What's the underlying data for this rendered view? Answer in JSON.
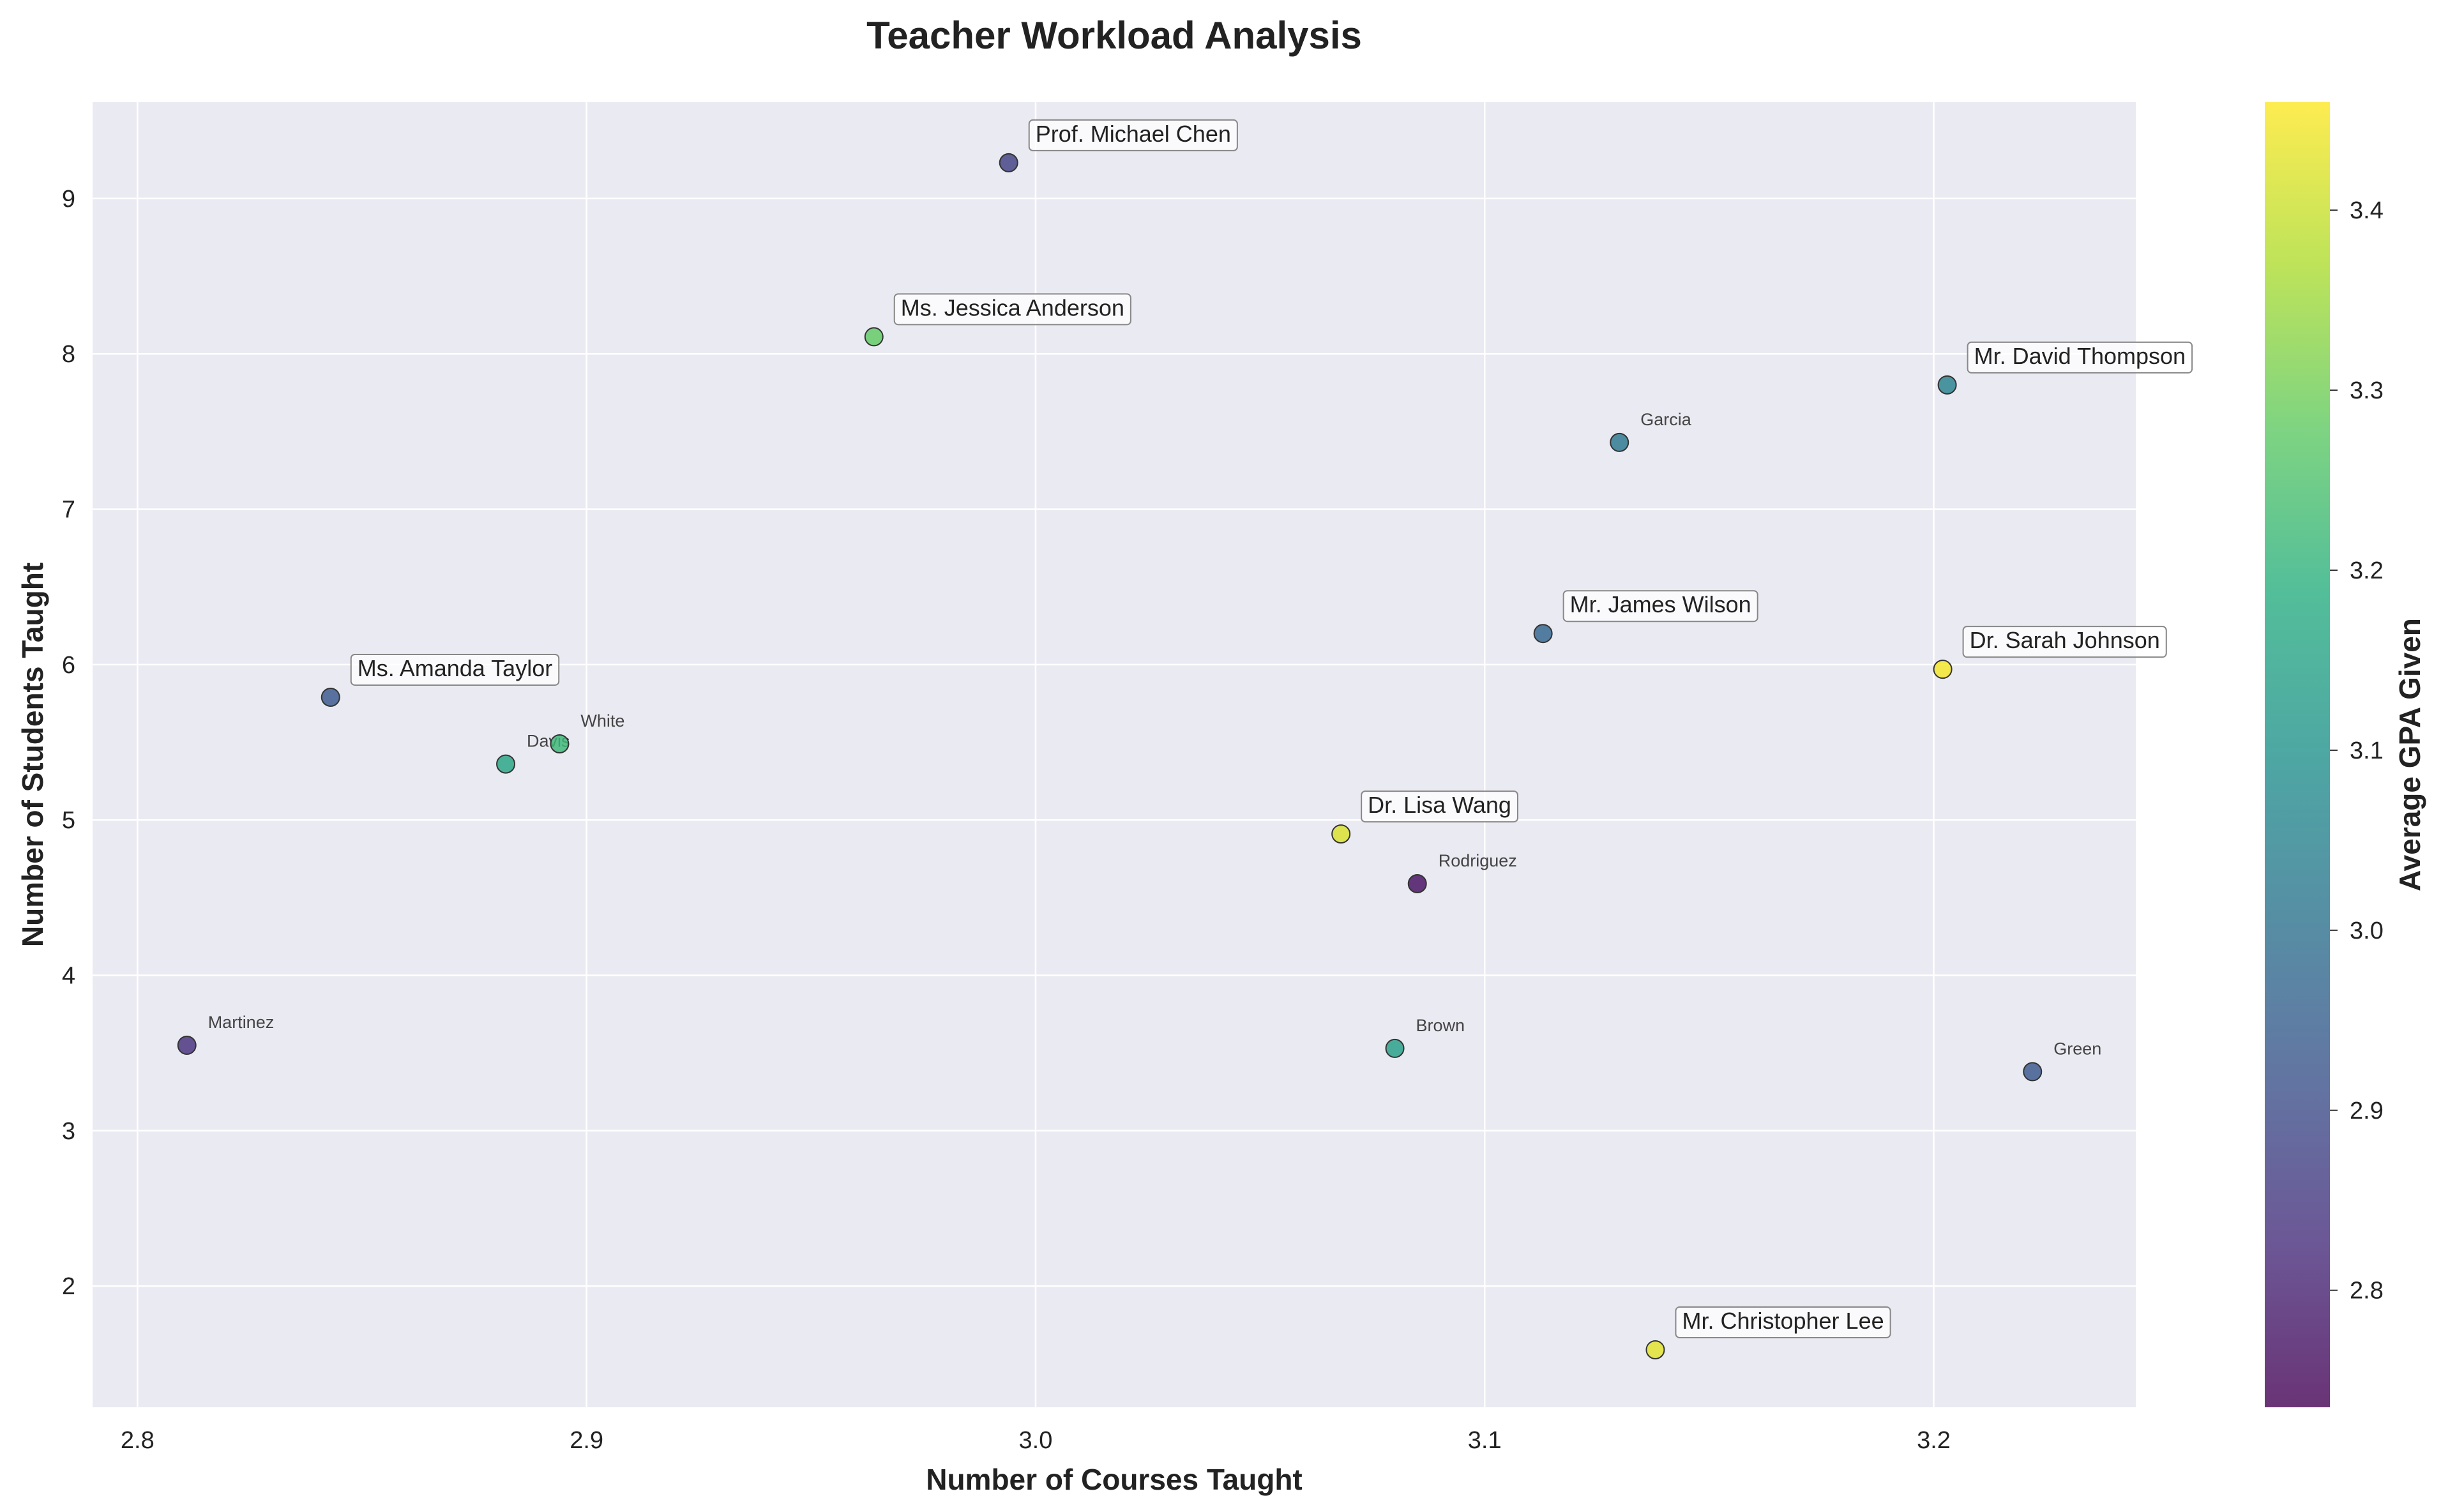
{
  "chart_data": {
    "type": "scatter",
    "title": "Teacher Workload Analysis",
    "xlabel": "Number of Courses Taught",
    "ylabel": "Number of Students Taught",
    "xlim": [
      2.79,
      3.245
    ],
    "ylim": [
      1.22,
      9.62
    ],
    "xticks": [
      2.8,
      2.9,
      3.0,
      3.1,
      3.2
    ],
    "xtick_labels": [
      "2.8",
      "2.9",
      "3.0",
      "3.1",
      "3.2"
    ],
    "yticks": [
      2,
      3,
      4,
      5,
      6,
      7,
      8,
      9
    ],
    "ytick_labels": [
      "2",
      "3",
      "4",
      "5",
      "6",
      "7",
      "8",
      "9"
    ],
    "grid": true,
    "colorbar": {
      "label": "Average GPA Given",
      "colormap": "viridis",
      "range": [
        2.735,
        3.46
      ],
      "ticks": [
        2.8,
        2.9,
        3.0,
        3.1,
        3.2,
        3.3,
        3.4
      ],
      "tick_labels": [
        "2.8",
        "2.9",
        "3.0",
        "3.1",
        "3.2",
        "3.3",
        "3.4"
      ]
    },
    "points": [
      {
        "label": "Prof. Michael Chen",
        "x": 2.994,
        "y": 9.23,
        "gpa": 2.87,
        "boxed": true
      },
      {
        "label": "Ms. Jessica Anderson",
        "x": 2.964,
        "y": 8.11,
        "gpa": 3.28,
        "boxed": true
      },
      {
        "label": "Mr. David Thompson",
        "x": 3.203,
        "y": 7.8,
        "gpa": 3.05,
        "boxed": true
      },
      {
        "label": "Garcia",
        "x": 3.13,
        "y": 7.43,
        "gpa": 3.02,
        "boxed": false
      },
      {
        "label": "Mr. James Wilson",
        "x": 3.113,
        "y": 6.2,
        "gpa": 2.97,
        "boxed": true
      },
      {
        "label": "Dr. Sarah Johnson",
        "x": 3.202,
        "y": 5.97,
        "gpa": 3.45,
        "boxed": true
      },
      {
        "label": "Ms. Amanda Taylor",
        "x": 2.843,
        "y": 5.79,
        "gpa": 2.93,
        "boxed": true
      },
      {
        "label": "White",
        "x": 2.894,
        "y": 5.49,
        "gpa": 3.22,
        "boxed": false
      },
      {
        "label": "Davis",
        "x": 2.882,
        "y": 5.36,
        "gpa": 3.16,
        "boxed": false
      },
      {
        "label": "Dr. Lisa Wang",
        "x": 3.068,
        "y": 4.91,
        "gpa": 3.42,
        "boxed": true
      },
      {
        "label": "Rodriguez",
        "x": 3.085,
        "y": 4.59,
        "gpa": 2.76,
        "boxed": false
      },
      {
        "label": "Martinez",
        "x": 2.811,
        "y": 3.55,
        "gpa": 2.83,
        "boxed": false
      },
      {
        "label": "Brown",
        "x": 3.08,
        "y": 3.53,
        "gpa": 3.14,
        "boxed": false
      },
      {
        "label": "Green",
        "x": 3.222,
        "y": 3.38,
        "gpa": 2.93,
        "boxed": false
      },
      {
        "label": "Mr. Christopher Lee",
        "x": 3.138,
        "y": 1.59,
        "gpa": 3.43,
        "boxed": true
      }
    ]
  }
}
